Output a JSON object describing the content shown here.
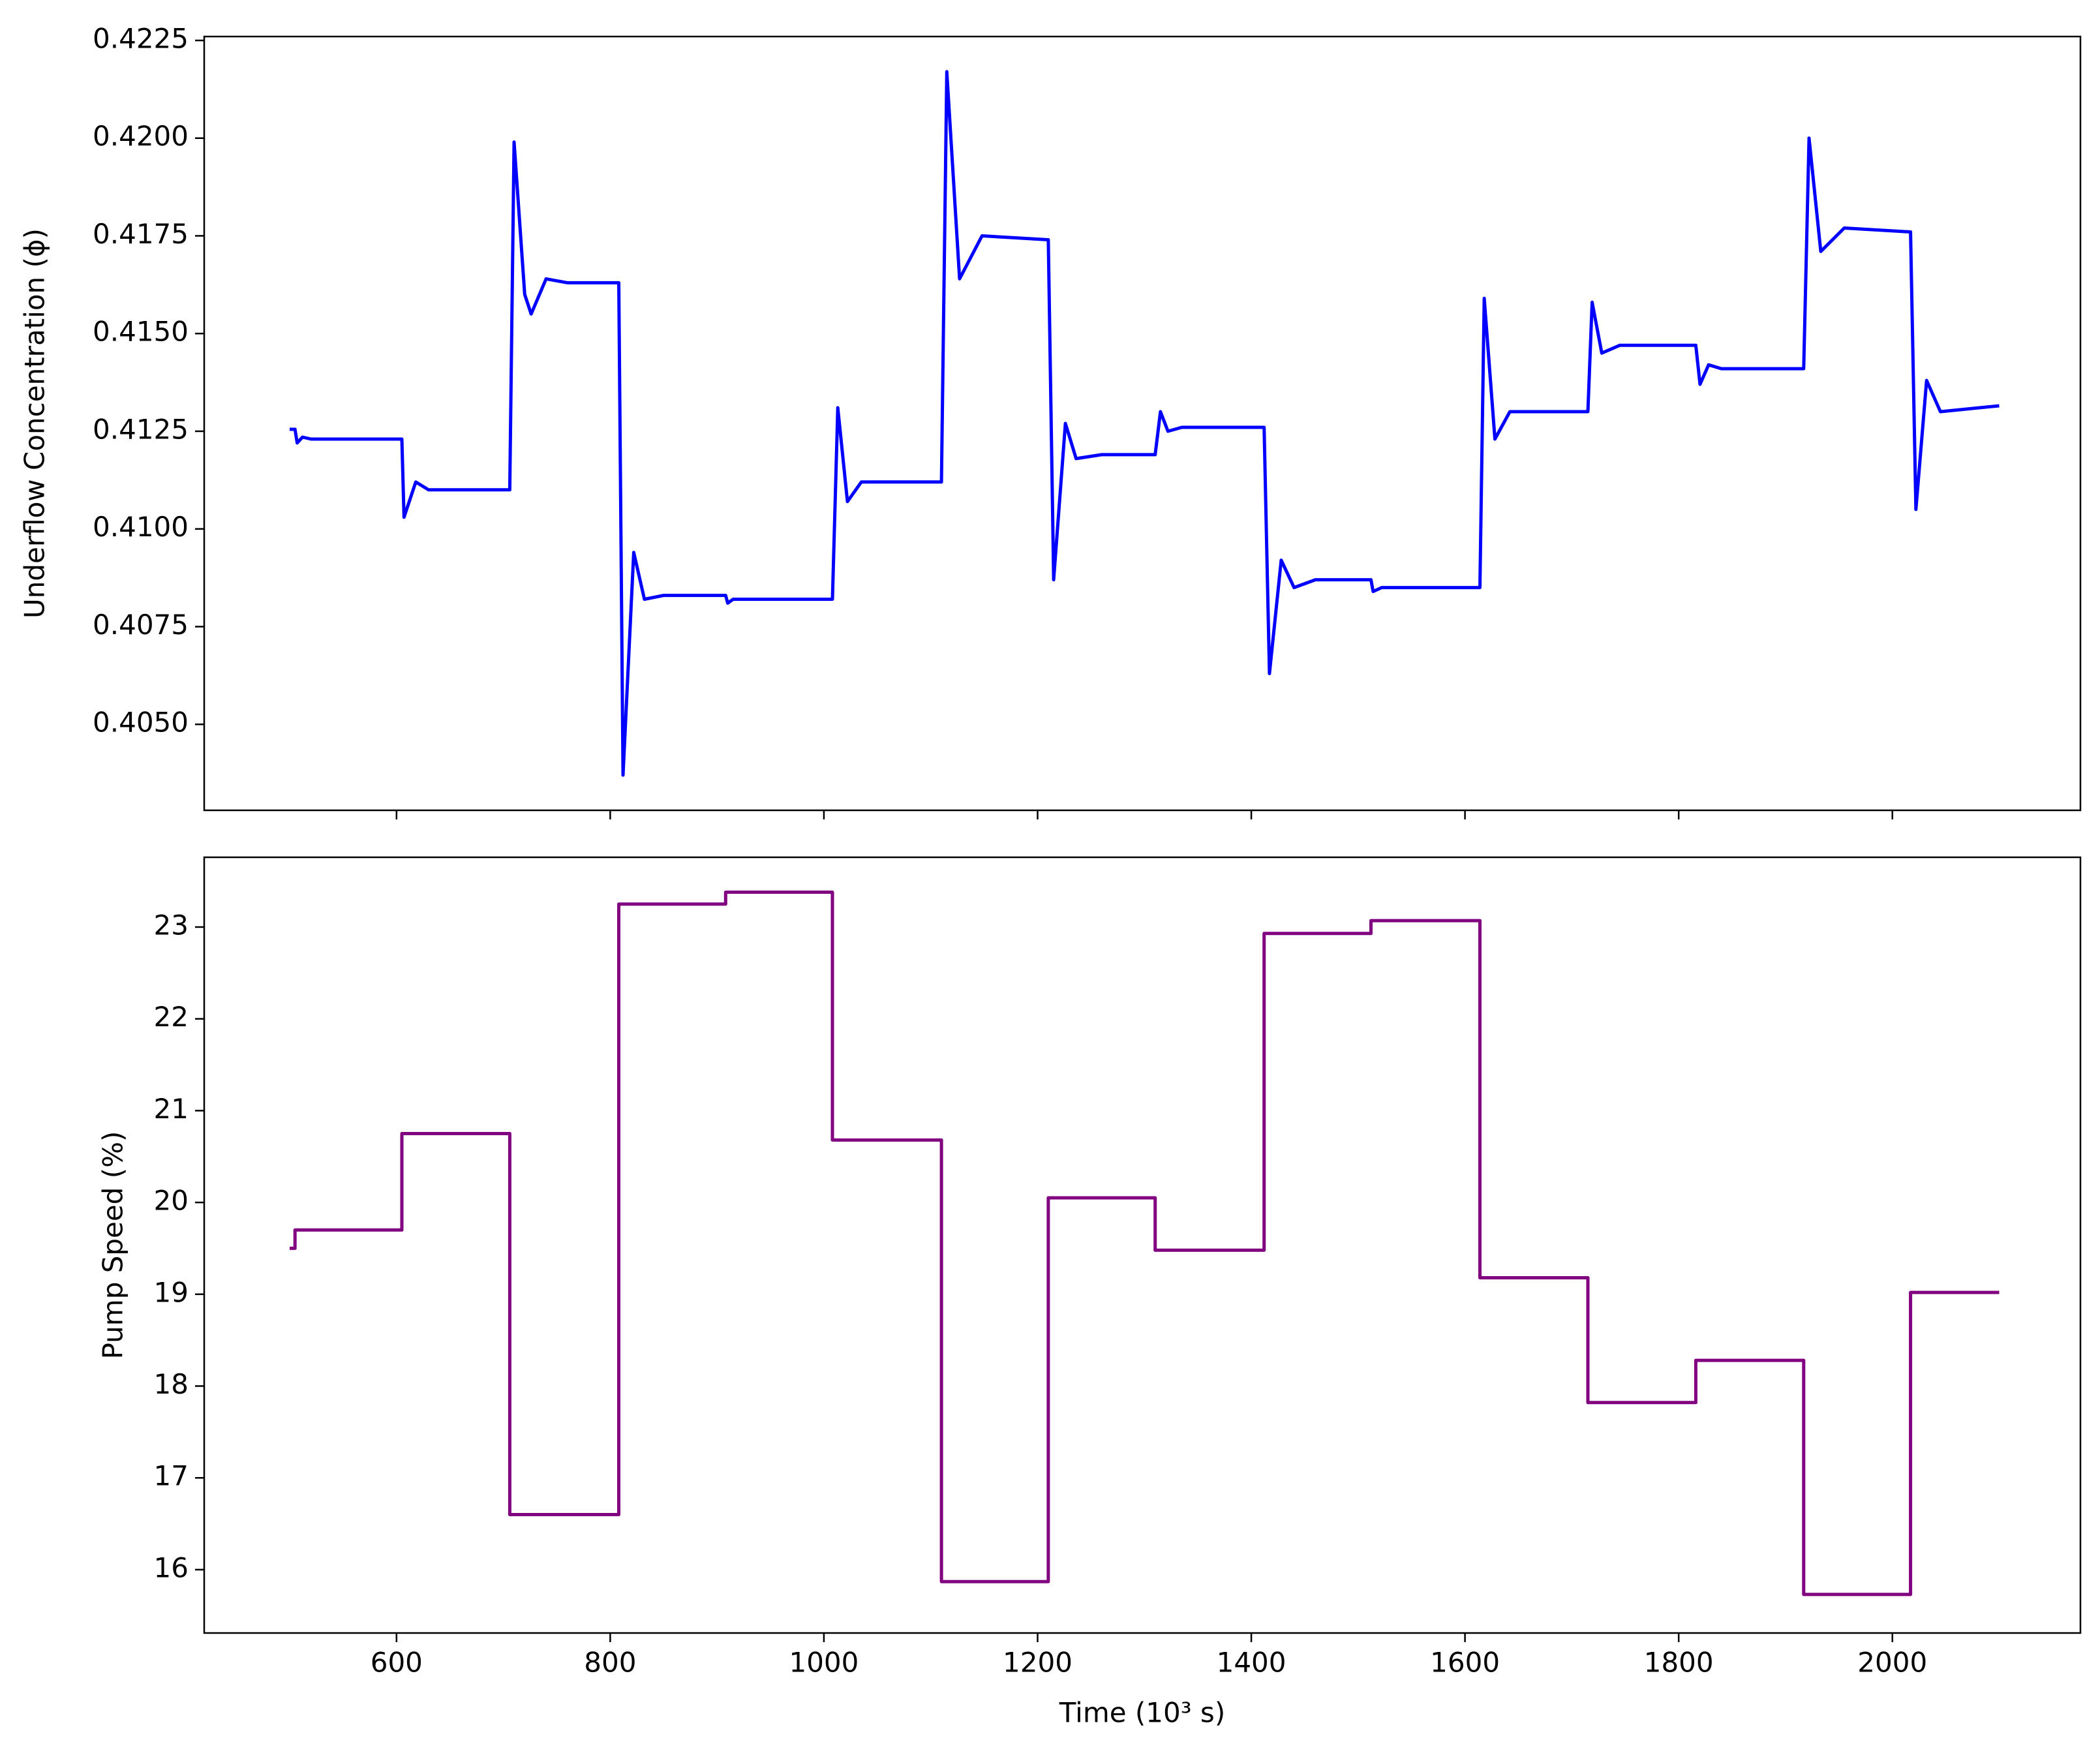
{
  "chart_data": [
    {
      "type": "line",
      "y_label": "Underflow Concentration (ϕ)",
      "color": "#0000ff",
      "x": [
        500,
        505,
        507,
        512,
        520,
        605,
        607,
        618,
        630,
        706,
        710,
        720,
        726,
        740,
        760,
        808,
        812,
        822,
        832,
        850,
        908,
        910,
        915,
        1008,
        1013,
        1022,
        1035,
        1110,
        1115,
        1127,
        1148,
        1210,
        1215,
        1226,
        1236,
        1260,
        1310,
        1315,
        1322,
        1335,
        1412,
        1417,
        1428,
        1440,
        1460,
        1512,
        1514,
        1522,
        1614,
        1618,
        1628,
        1642,
        1715,
        1719,
        1728,
        1745,
        1816,
        1820,
        1828,
        1840,
        1917,
        1922,
        1933,
        1955,
        2017,
        2022,
        2032,
        2045,
        2100
      ],
      "values": [
        0.41255,
        0.41255,
        0.4122,
        0.41235,
        0.4123,
        0.4123,
        0.4103,
        0.4112,
        0.411,
        0.411,
        0.4199,
        0.416,
        0.4155,
        0.4164,
        0.4163,
        0.4163,
        0.4037,
        0.4094,
        0.4082,
        0.4083,
        0.4083,
        0.4081,
        0.4082,
        0.4082,
        0.4131,
        0.4107,
        0.4112,
        0.4112,
        0.4217,
        0.4164,
        0.4175,
        0.4174,
        0.4087,
        0.4127,
        0.4118,
        0.4119,
        0.4119,
        0.413,
        0.4125,
        0.4126,
        0.4126,
        0.4063,
        0.4092,
        0.4085,
        0.4087,
        0.4087,
        0.4084,
        0.4085,
        0.4085,
        0.4159,
        0.4123,
        0.413,
        0.413,
        0.4158,
        0.4145,
        0.4147,
        0.4147,
        0.4137,
        0.4142,
        0.4141,
        0.4141,
        0.42,
        0.4171,
        0.4177,
        0.4176,
        0.4105,
        0.4138,
        0.413,
        0.41315
      ],
      "xlim": [
        420,
        2176
      ],
      "xticks": [
        600,
        800,
        1000,
        1200,
        1400,
        1600,
        1800,
        2000
      ],
      "ylim": [
        0.4028,
        0.4226
      ],
      "yticks": [
        {
          "value": 0.405,
          "label": "0.4050"
        },
        0.4075,
        {
          "value": 0.41,
          "label": "0.4100"
        },
        0.4125,
        {
          "value": 0.415,
          "label": "0.4150"
        },
        0.4175,
        {
          "value": 0.42,
          "label": "0.4200"
        },
        0.4225
      ]
    },
    {
      "type": "line",
      "x_label": "Time (10³ s)",
      "y_label": "Pump Speed (%)",
      "color": "#800080",
      "x": [
        500,
        505,
        505,
        605,
        605,
        706,
        706,
        808,
        808,
        908,
        908,
        1008,
        1008,
        1110,
        1110,
        1210,
        1210,
        1310,
        1310,
        1412,
        1412,
        1512,
        1512,
        1614,
        1614,
        1715,
        1715,
        1816,
        1816,
        1917,
        1917,
        2017,
        2017,
        2100
      ],
      "values": [
        19.5,
        19.5,
        19.7,
        19.7,
        20.75,
        20.75,
        16.6,
        16.6,
        23.25,
        23.25,
        23.38,
        23.38,
        20.68,
        20.68,
        15.87,
        15.87,
        20.05,
        20.05,
        19.48,
        19.48,
        22.93,
        22.93,
        23.07,
        23.07,
        19.18,
        19.18,
        17.82,
        17.82,
        18.28,
        18.28,
        15.73,
        15.73,
        19.02,
        19.02
      ],
      "xlim": [
        420,
        2176
      ],
      "xticks": [
        600,
        800,
        1000,
        1200,
        1400,
        1600,
        1800,
        2000
      ],
      "ylim": [
        15.31,
        23.76
      ],
      "yticks": [
        16,
        17,
        18,
        19,
        20,
        21,
        22,
        23
      ]
    }
  ]
}
